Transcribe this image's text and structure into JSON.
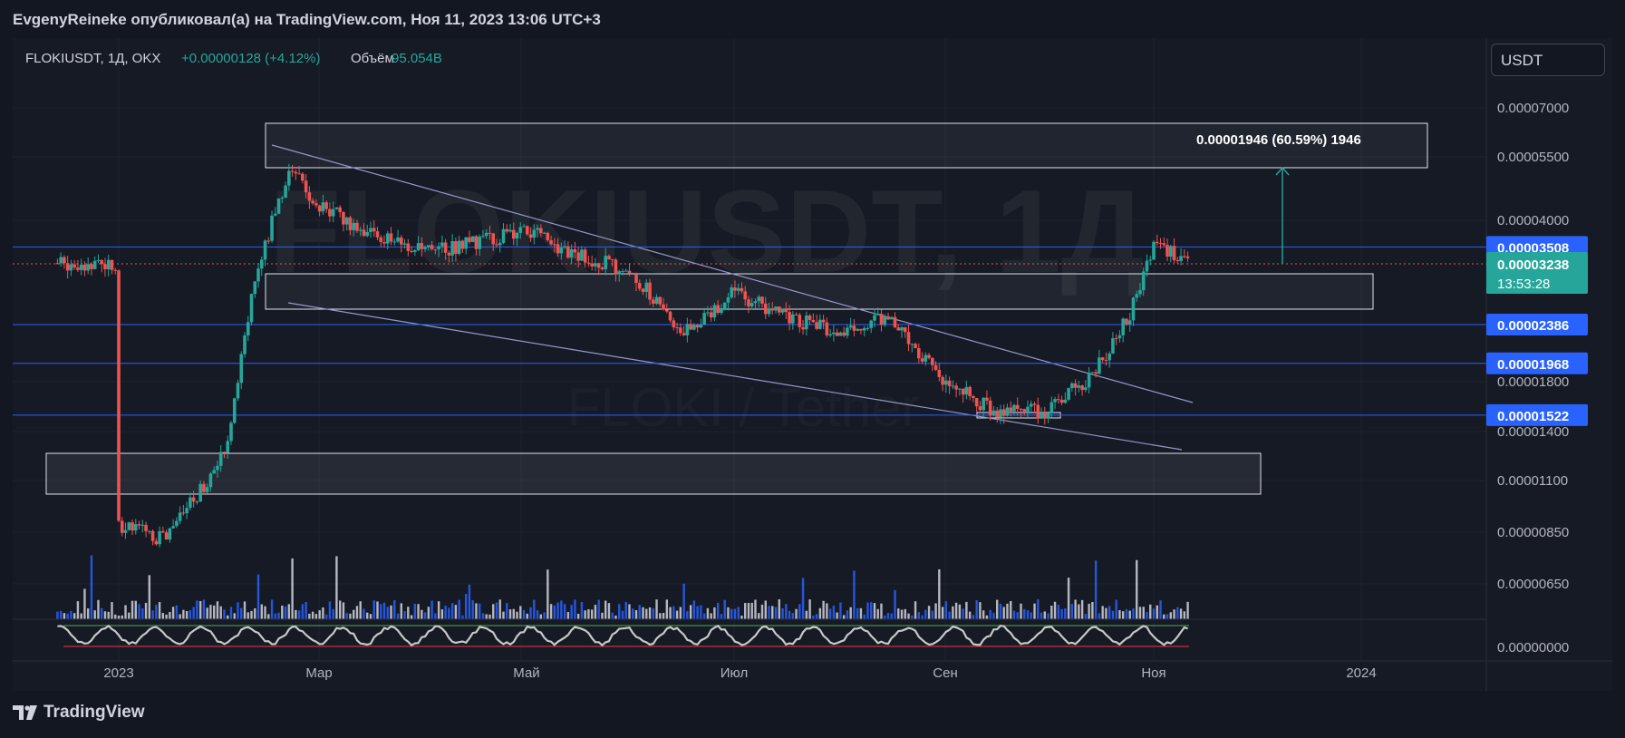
{
  "header": {
    "publish_line": "EvgenyReineke опубликовал(а) на TradingView.com, Ноя 11, 2023 13:06 UTC+3"
  },
  "legend": {
    "symbol": "FLOKIUSDT, 1Д, OKX",
    "change": "+0.00000128 (+4.12%)",
    "volume_label": "Объём",
    "volume_value": "95.054B"
  },
  "watermark": {
    "symbol": "FLOKIUSDT, 1Д",
    "pair": "FLOKI / Tether"
  },
  "currency_button": "USDT",
  "price_axis": {
    "ticks": [
      "0.00007000",
      "0.00005500",
      "0.00004000",
      "0.00001800",
      "0.00001400",
      "0.00001100",
      "0.00000850",
      "0.00000650",
      "0.00000000"
    ],
    "level_labels": [
      "0.00003508",
      "0.00002386",
      "0.00001968",
      "0.00001522"
    ],
    "current_price": "0.00003238",
    "countdown": "13:53:28"
  },
  "time_axis": {
    "ticks": [
      "2023",
      "Мар",
      "Май",
      "Июл",
      "Сен",
      "Ноя",
      "2024"
    ]
  },
  "annotation": {
    "measure_text": "0.00001946 (60.59%) 1946"
  },
  "colors": {
    "up": "#26a69a",
    "down": "#ef5350",
    "level_line": "#2962ff",
    "label_bg": "#2962ff",
    "current_bg": "#26a69a",
    "volume_up": "#2962ff",
    "volume_alt": "#d1d4dc",
    "osc_line": "#c8c8c8",
    "osc_upper": "#4caf50",
    "osc_lower": "#f23645"
  },
  "footer": {
    "brand": "TradingView"
  },
  "chart_data": {
    "type": "candlestick",
    "symbol": "FLOKIUSDT",
    "interval": "1D",
    "exchange": "OKX",
    "horizontal_levels": [
      3.508e-05,
      2.386e-05,
      1.968e-05,
      1.522e-05
    ],
    "current_price": 3.238e-05,
    "price_series": {
      "name": "FLOKIUSDT",
      "x": [
        "2023-01-01",
        "2023-01-15",
        "2023-02-01",
        "2023-02-10",
        "2023-02-20",
        "2023-03-01",
        "2023-03-15",
        "2023-04-01",
        "2023-04-15",
        "2023-05-01",
        "2023-05-15",
        "2023-06-01",
        "2023-06-15",
        "2023-07-01",
        "2023-07-15",
        "2023-08-01",
        "2023-08-15",
        "2023-09-01",
        "2023-09-15",
        "2023-10-01",
        "2023-10-15",
        "2023-10-25",
        "2023-11-01",
        "2023-11-11"
      ],
      "close": [
        8.8e-06,
        8.2e-06,
        1.25e-05,
        3e-05,
        5.2e-05,
        4.3e-05,
        3.8e-05,
        3.4e-05,
        3.6e-05,
        3.8e-05,
        3.4e-05,
        3.1e-05,
        2.3e-05,
        2.8e-05,
        2.5e-05,
        2.3e-05,
        2.5e-05,
        1.8e-05,
        1.55e-05,
        1.55e-05,
        1.9e-05,
        2.5e-05,
        3.6e-05,
        3.238e-05
      ]
    }
  }
}
